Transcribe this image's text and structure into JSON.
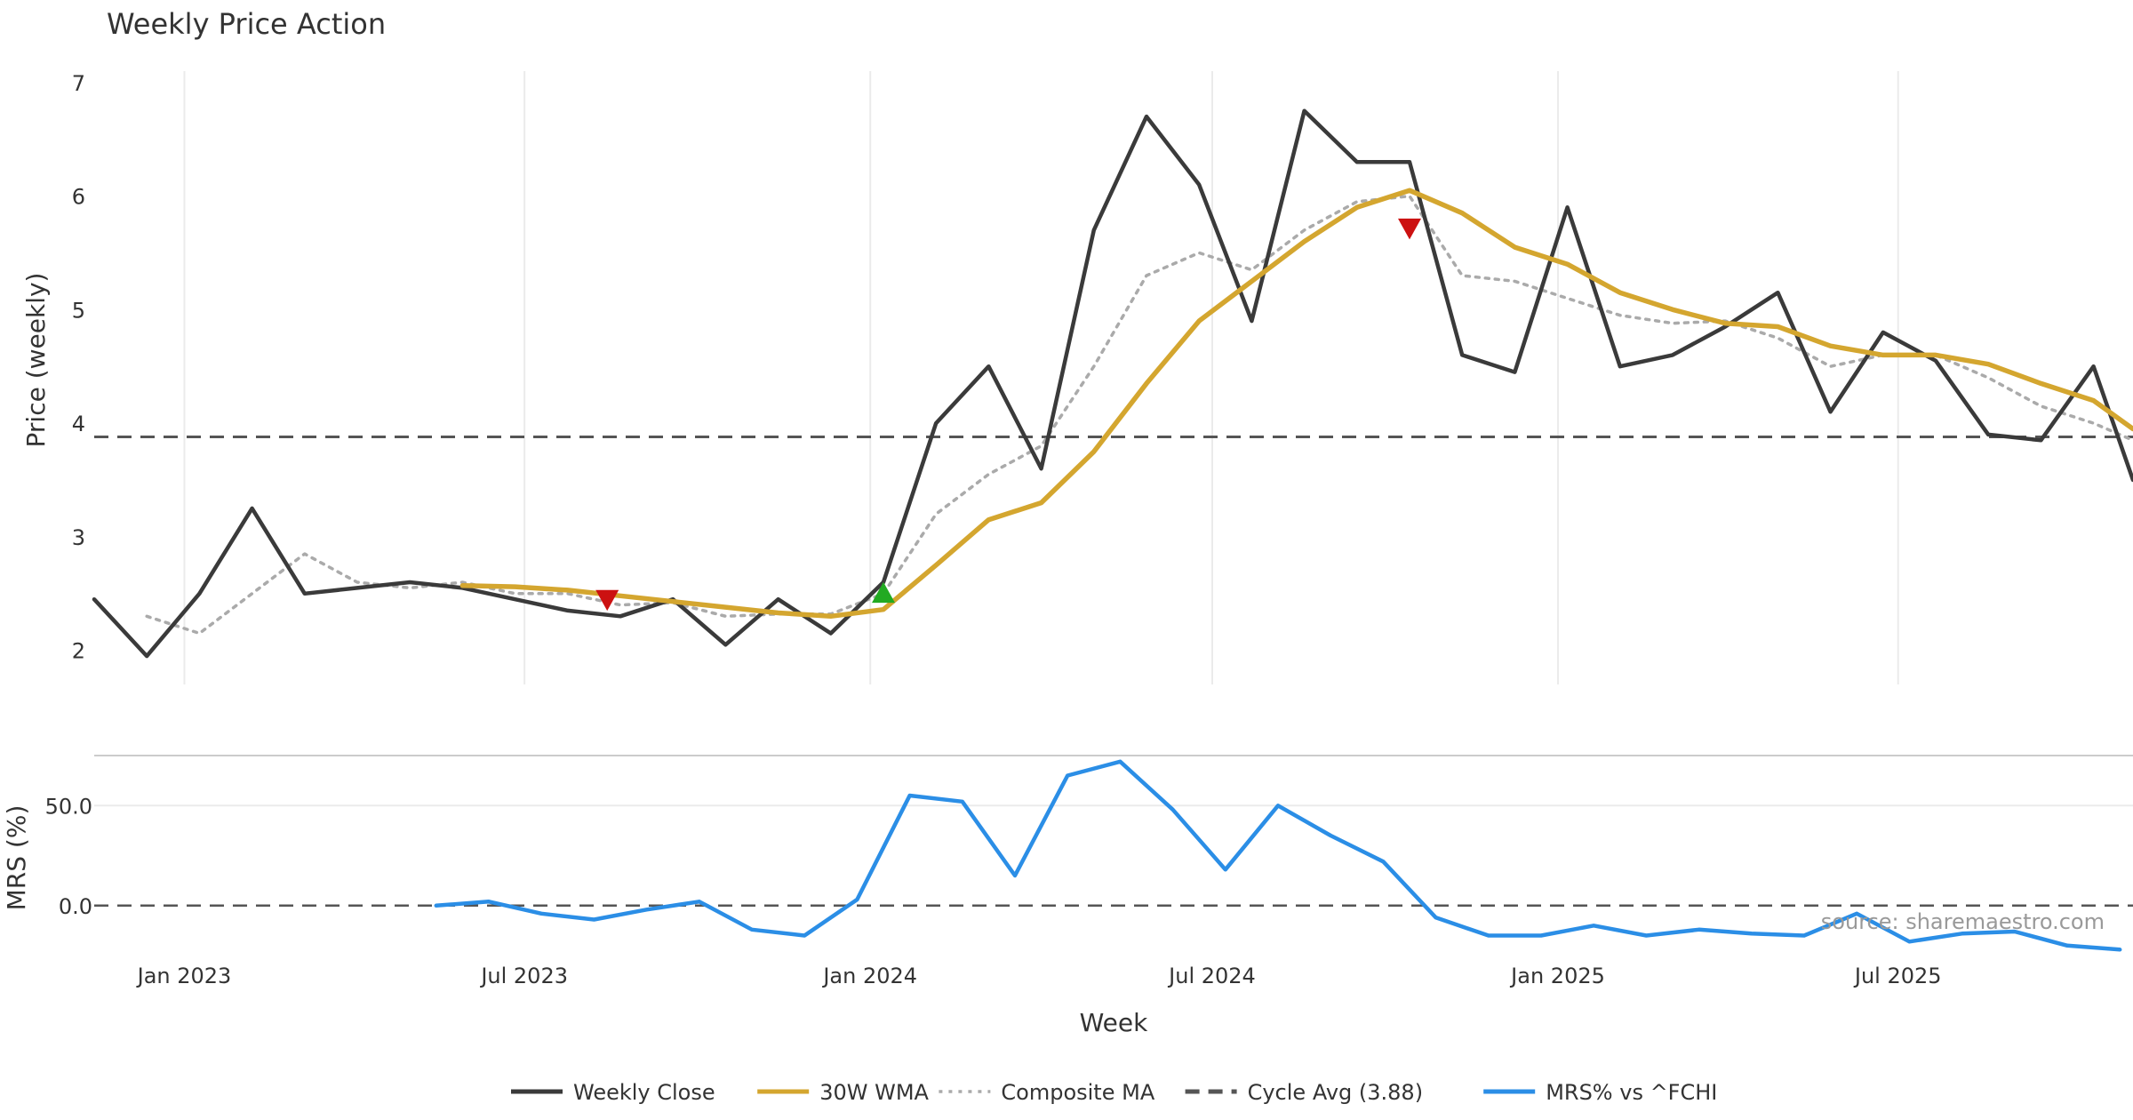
{
  "chart_data": [
    {
      "type": "line",
      "title": "Weekly Price Action",
      "xlabel": "",
      "ylabel": "Price (weekly)",
      "ylim": [
        1.7,
        7.1
      ],
      "yticks": [
        "2",
        "3",
        "4",
        "5",
        "6",
        "7"
      ],
      "x_range": [
        "2022-11-14",
        "2025-11-03"
      ],
      "x": [
        "2022-11-14",
        "2022-12-12",
        "2023-01-09",
        "2023-02-06",
        "2023-03-06",
        "2023-04-03",
        "2023-05-01",
        "2023-05-29",
        "2023-06-26",
        "2023-07-24",
        "2023-08-21",
        "2023-09-18",
        "2023-10-16",
        "2023-11-13",
        "2023-12-11",
        "2024-01-08",
        "2024-02-05",
        "2024-03-04",
        "2024-04-01",
        "2024-04-29",
        "2024-05-27",
        "2024-06-24",
        "2024-07-22",
        "2024-08-19",
        "2024-09-16",
        "2024-10-14",
        "2024-11-11",
        "2024-12-09",
        "2025-01-06",
        "2025-02-03",
        "2025-03-03",
        "2025-03-31",
        "2025-04-28",
        "2025-05-26",
        "2025-06-23",
        "2025-07-21",
        "2025-08-18",
        "2025-09-15",
        "2025-10-13",
        "2025-11-03"
      ],
      "series": [
        {
          "name": "Weekly Close",
          "color": "#3a3a3a",
          "style": "solid",
          "values": [
            2.45,
            1.95,
            2.5,
            3.25,
            2.5,
            2.55,
            2.6,
            2.55,
            2.45,
            2.35,
            2.3,
            2.45,
            2.05,
            2.45,
            2.15,
            2.6,
            4.0,
            4.5,
            3.6,
            5.7,
            6.7,
            6.1,
            4.9,
            6.75,
            6.3,
            6.3,
            4.6,
            4.45,
            5.9,
            4.5,
            4.6,
            4.85,
            5.15,
            4.1,
            4.8,
            4.55,
            3.9,
            3.85,
            4.5,
            3.5
          ]
        },
        {
          "name": "30W WMA",
          "color": "#d4a62f",
          "style": "solid",
          "values": [
            null,
            null,
            null,
            null,
            null,
            null,
            null,
            2.57,
            2.56,
            2.53,
            2.48,
            2.43,
            2.38,
            2.33,
            2.3,
            2.36,
            2.75,
            3.15,
            3.3,
            3.75,
            4.35,
            4.9,
            5.25,
            5.6,
            5.9,
            6.05,
            5.85,
            5.55,
            5.4,
            5.15,
            5.0,
            4.88,
            4.85,
            4.68,
            4.6,
            4.6,
            4.52,
            4.35,
            4.2,
            3.95
          ]
        },
        {
          "name": "Composite MA",
          "color": "#aaaaaa",
          "style": "dotted",
          "values": [
            null,
            2.3,
            2.15,
            2.5,
            2.85,
            2.6,
            2.55,
            2.6,
            2.5,
            2.5,
            2.4,
            2.42,
            2.3,
            2.32,
            2.32,
            2.5,
            3.2,
            3.55,
            3.8,
            4.5,
            5.3,
            5.5,
            5.35,
            5.7,
            5.95,
            6.0,
            5.3,
            5.25,
            5.1,
            4.95,
            4.88,
            4.9,
            4.75,
            4.5,
            4.6,
            4.6,
            4.4,
            4.15,
            4.0,
            3.85
          ]
        },
        {
          "name": "Cycle Avg (3.88)",
          "color": "#555555",
          "style": "dashed",
          "value": 3.88
        }
      ],
      "markers": [
        {
          "type": "sell",
          "x": "2023-08-14",
          "y": 2.45,
          "color": "#cc1111"
        },
        {
          "type": "buy",
          "x": "2024-01-08",
          "y": 2.5,
          "color": "#22aa22"
        },
        {
          "type": "sell",
          "x": "2024-10-14",
          "y": 5.72,
          "color": "#cc1111"
        }
      ]
    },
    {
      "type": "line",
      "title": "",
      "xlabel": "Week",
      "ylabel": "MRS (%)",
      "ylim": [
        -25,
        75
      ],
      "yticks": [
        "0.0",
        "50.0"
      ],
      "xticks": [
        "Jan 2023",
        "Jul 2023",
        "Jan 2024",
        "Jul 2024",
        "Jan 2025",
        "Jul 2025"
      ],
      "x_range": [
        "2022-11-14",
        "2025-11-03"
      ],
      "x": [
        "2023-05-15",
        "2023-06-12",
        "2023-07-10",
        "2023-08-07",
        "2023-09-04",
        "2023-10-02",
        "2023-10-30",
        "2023-11-27",
        "2023-12-25",
        "2024-01-22",
        "2024-02-19",
        "2024-03-18",
        "2024-04-15",
        "2024-05-13",
        "2024-06-10",
        "2024-07-08",
        "2024-08-05",
        "2024-09-02",
        "2024-09-30",
        "2024-10-28",
        "2024-11-25",
        "2024-12-23",
        "2025-01-20",
        "2025-02-17",
        "2025-03-17",
        "2025-04-14",
        "2025-05-12",
        "2025-06-09",
        "2025-07-07",
        "2025-08-04",
        "2025-09-01",
        "2025-09-29",
        "2025-10-27"
      ],
      "series": [
        {
          "name": "MRS% vs ^FCHI",
          "color": "#2b8ee6",
          "style": "solid",
          "values": [
            0,
            2,
            -4,
            -7,
            -2,
            2,
            -12,
            -15,
            3,
            55,
            52,
            15,
            65,
            72,
            48,
            18,
            50,
            35,
            22,
            -6,
            -15,
            -15,
            -10,
            -15,
            -12,
            -14,
            -15,
            -4,
            -18,
            -14,
            -13,
            -20,
            -22
          ]
        },
        {
          "name": "zero line",
          "color": "#555555",
          "style": "dashed",
          "value": 0
        }
      ],
      "legend": [
        "Weekly Close",
        "30W WMA",
        "Composite MA",
        "Cycle Avg (3.88)",
        "MRS% vs ^FCHI"
      ],
      "legend_position": "bottom-center"
    }
  ],
  "source_text": "source: sharemaestro.com"
}
